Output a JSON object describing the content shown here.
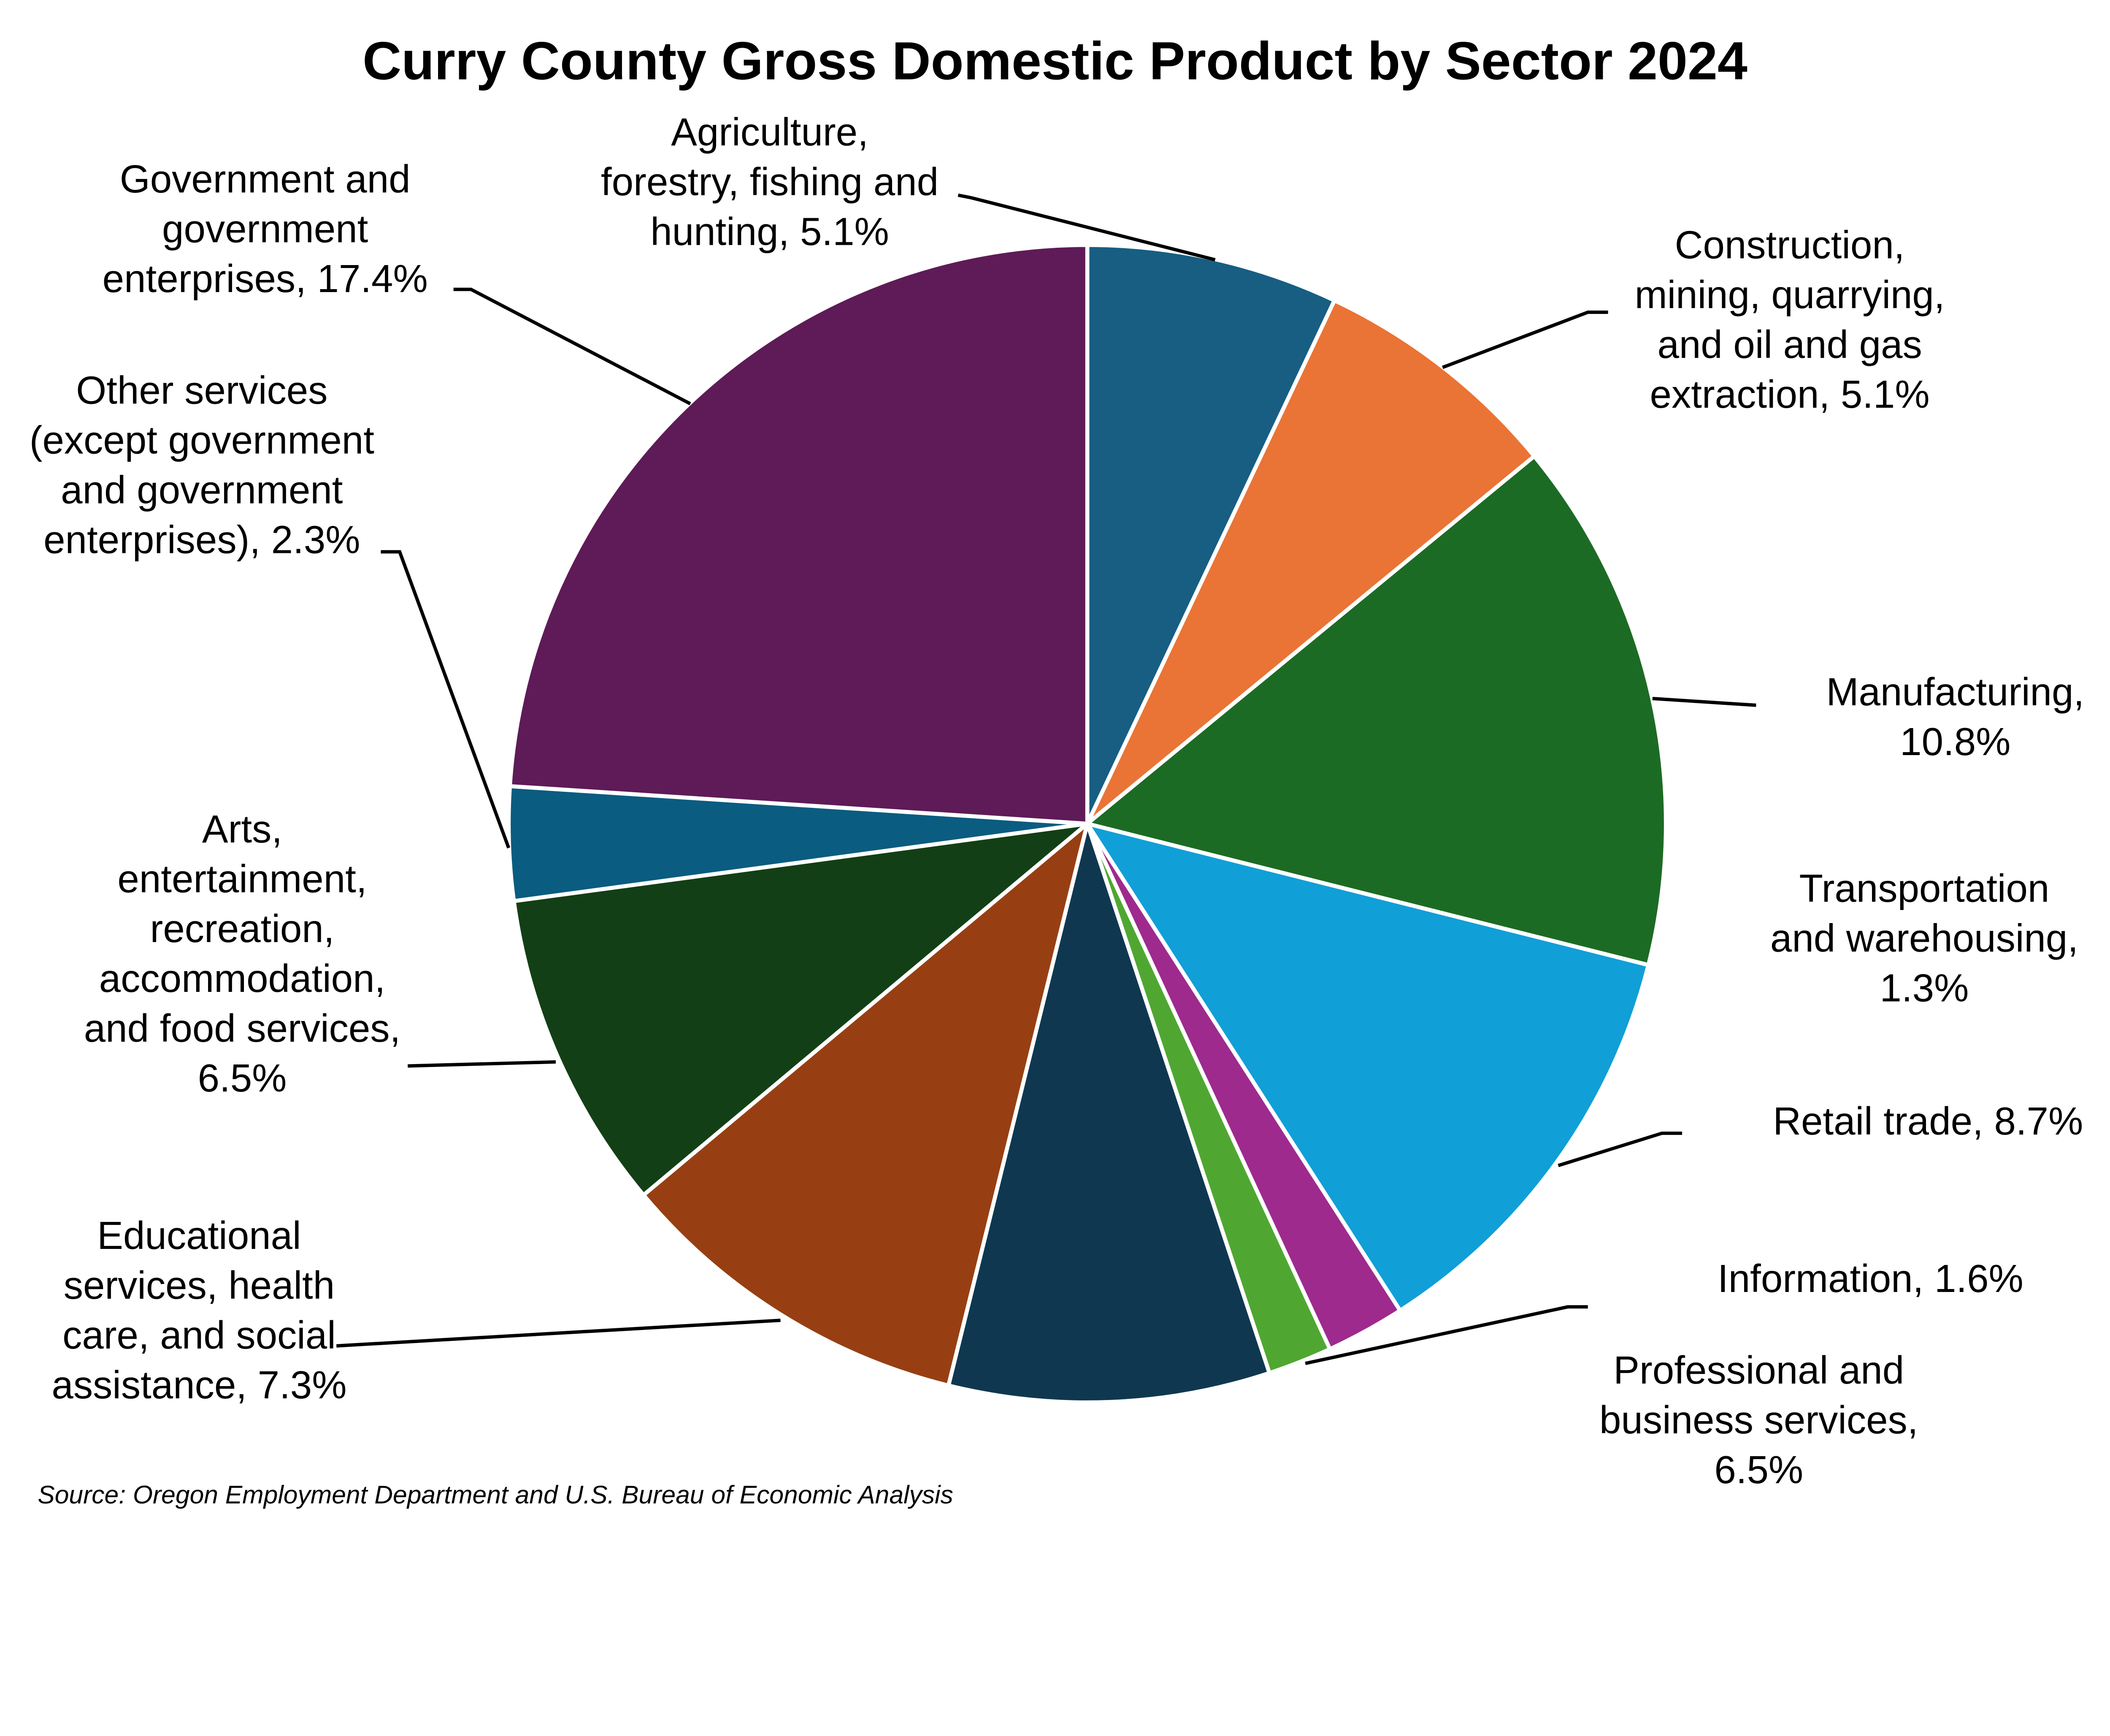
{
  "chart_data": {
    "type": "pie",
    "title": "Curry County Gross Domestic Product by Sector 2024",
    "source": "Source: Oregon Employment Department and U.S. Bureau of Economic Analysis",
    "start_angle": "12 o'clock, clockwise",
    "slices": [
      {
        "name": "Agriculture, forestry, fishing and hunting",
        "value": 5.1,
        "color": "#175e82",
        "label_lines": [
          "Agriculture,",
          "forestry, fishing and",
          "hunting, 5.1%"
        ]
      },
      {
        "name": "Construction, mining, quarrying, and oil and gas extraction",
        "value": 5.1,
        "color": "#e97435",
        "label_lines": [
          "Construction,",
          "mining, quarrying,",
          "and oil and gas",
          "extraction, 5.1%"
        ]
      },
      {
        "name": "Manufacturing",
        "value": 10.8,
        "color": "#1c6b24",
        "label_lines": [
          "Manufacturing,",
          "10.8%"
        ]
      },
      {
        "name": "Retail trade",
        "value": 8.7,
        "color": "#119fd7",
        "label_lines": [
          "Retail trade, 8.7%"
        ]
      },
      {
        "name": "Information",
        "value": 1.6,
        "color": "#9e2a8e",
        "label_lines": [
          "Information, 1.6%"
        ]
      },
      {
        "name": "Transportation and warehousing",
        "value": 1.3,
        "color": "#4fa731",
        "label_lines": [
          "Transportation",
          "and warehousing,",
          "1.3%"
        ]
      },
      {
        "name": "Professional and business services",
        "value": 6.5,
        "color": "#0f3850",
        "label_lines": [
          "Professional and",
          "business services,",
          "6.5%"
        ]
      },
      {
        "name": "Educational services, health care, and social assistance",
        "value": 7.3,
        "color": "#973f12",
        "label_lines": [
          "Educational",
          "services, health",
          "care, and social",
          "assistance, 7.3%"
        ]
      },
      {
        "name": "Arts, entertainment, recreation, accommodation, and food services",
        "value": 6.5,
        "color": "#133f16",
        "label_lines": [
          "Arts,",
          "entertainment,",
          "recreation,",
          "accommodation,",
          "and food services,",
          "6.5%"
        ]
      },
      {
        "name": "Other services (except government and government enterprises)",
        "value": 2.3,
        "color": "#0a5c80",
        "label_lines": [
          "Other services",
          "(except government",
          "and government",
          "enterprises), 2.3%"
        ]
      },
      {
        "name": "Government and government enterprises",
        "value": 17.4,
        "color": "#5e1b57",
        "label_lines": [
          "Government and",
          "government",
          "enterprises, 17.4%"
        ]
      }
    ]
  }
}
